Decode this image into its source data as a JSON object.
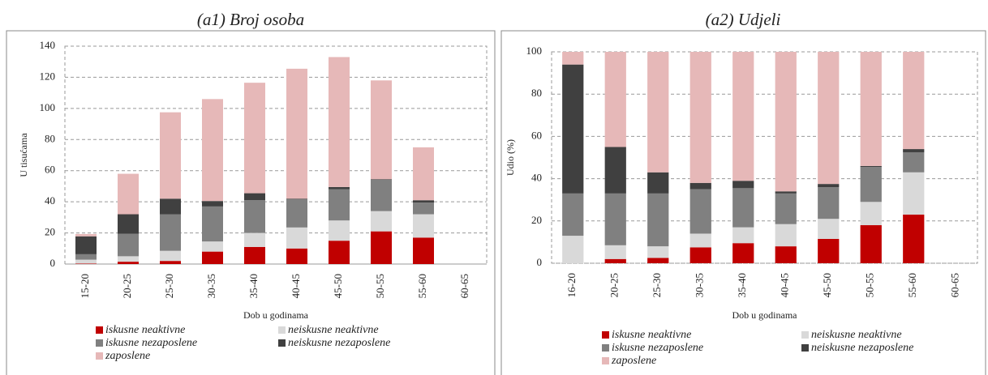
{
  "chart_data": [
    {
      "type": "bar",
      "stacked": true,
      "title": "(a1) Broj osoba",
      "ylabel": "U tisućama",
      "xlabel": "Dob u godinama",
      "categories": [
        "15-20",
        "20-25",
        "25-30",
        "30-35",
        "35-40",
        "40-45",
        "45-50",
        "50-55",
        "55-60",
        "60-65"
      ],
      "ylim": [
        0,
        140
      ],
      "yticks": [
        0,
        20,
        40,
        60,
        80,
        100,
        120,
        140
      ],
      "grid": true,
      "series": [
        {
          "name": "iskusne neaktivne",
          "color": "#c00000",
          "values": [
            0.3,
            1.5,
            2,
            8,
            11,
            10,
            15,
            21,
            17,
            null
          ]
        },
        {
          "name": "neiskusne neaktivne",
          "color": "#d9d9d9",
          "values": [
            2.5,
            3.5,
            6.5,
            6.5,
            9,
            13.5,
            13,
            13,
            15,
            null
          ]
        },
        {
          "name": "iskusne nezaposlene",
          "color": "#808080",
          "values": [
            3.5,
            14.5,
            23.5,
            22.5,
            21,
            18,
            20,
            20,
            7.5,
            null
          ]
        },
        {
          "name": "neiskusne nezaposlene",
          "color": "#404040",
          "values": [
            11.5,
            12.5,
            10,
            3.5,
            4.5,
            0.5,
            1.5,
            0.5,
            1.5,
            null
          ]
        },
        {
          "name": "zaposlene",
          "color": "#e6b8b8",
          "values": [
            1.5,
            26,
            55.5,
            65.5,
            71,
            83.5,
            83.5,
            63.5,
            34,
            null
          ]
        }
      ]
    },
    {
      "type": "bar",
      "stacked": true,
      "title": "(a2) Udjeli",
      "ylabel": "Udio (%)",
      "xlabel": "Dob u godinama",
      "categories": [
        "16-20",
        "20-25",
        "25-30",
        "30-35",
        "35-40",
        "40-45",
        "45-50",
        "50-55",
        "55-60",
        "60-65"
      ],
      "ylim": [
        0,
        100
      ],
      "yticks": [
        0,
        20,
        40,
        60,
        80,
        100
      ],
      "grid": true,
      "series": [
        {
          "name": "iskusne neaktivne",
          "color": "#c00000",
          "values": [
            0,
            2,
            2.5,
            7.5,
            9.5,
            8,
            11.5,
            18,
            23,
            null
          ]
        },
        {
          "name": "neiskusne neaktivne",
          "color": "#d9d9d9",
          "values": [
            13,
            6.5,
            5.5,
            6.5,
            7.5,
            10.5,
            9.5,
            11,
            20,
            null
          ]
        },
        {
          "name": "iskusne nezaposlene",
          "color": "#808080",
          "values": [
            20,
            24.5,
            25,
            21,
            18.5,
            14.5,
            15,
            16.5,
            9.5,
            null
          ]
        },
        {
          "name": "neiskusne nezaposlene",
          "color": "#404040",
          "values": [
            61,
            22,
            10,
            3,
            3.5,
            1,
            1.5,
            0.5,
            1.5,
            null
          ]
        },
        {
          "name": "zaposlene",
          "color": "#e6b8b8",
          "values": [
            6,
            45,
            57,
            62,
            61,
            66,
            62.5,
            54,
            46,
            null
          ]
        }
      ]
    }
  ]
}
